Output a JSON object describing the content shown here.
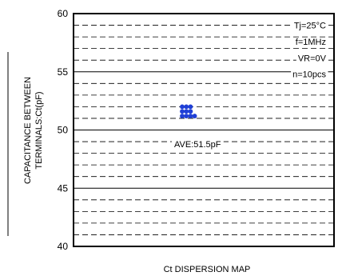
{
  "chart_data": {
    "type": "scatter",
    "title": "",
    "xlabel": "Ct DISPERSION MAP",
    "ylabel_lines": [
      "CAPACITANCE BETWEEN",
      "TERMINALS:Ct(pF)"
    ],
    "ylim": [
      40,
      60
    ],
    "yticks": [
      40,
      45,
      50,
      55,
      60
    ],
    "grid": {
      "major_step": 5,
      "minor_step": 1,
      "major_style": "solid",
      "minor_style": "dashed"
    },
    "conditions": [
      "Tj=25°C",
      "f=1MHz",
      "VR=0V",
      "n=10pcs"
    ],
    "average_label": "AVE:51.5pF",
    "marker_color": "#1f3fd6",
    "series": [
      {
        "points": [
          {
            "column": 1,
            "y": 52.0
          },
          {
            "column": 2,
            "y": 52.0
          },
          {
            "column": 3,
            "y": 52.0
          },
          {
            "column": 1,
            "y": 51.6
          },
          {
            "column": 2,
            "y": 51.6
          },
          {
            "column": 3,
            "y": 51.6
          },
          {
            "column": 1,
            "y": 51.2
          },
          {
            "column": 2,
            "y": 51.2
          },
          {
            "column": 3,
            "y": 51.2
          },
          {
            "column": 4,
            "y": 51.2
          }
        ]
      }
    ]
  }
}
